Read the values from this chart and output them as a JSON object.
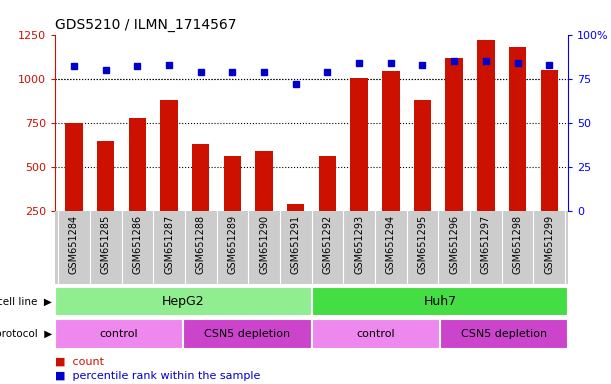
{
  "title": "GDS5210 / ILMN_1714567",
  "samples": [
    "GSM651284",
    "GSM651285",
    "GSM651286",
    "GSM651287",
    "GSM651288",
    "GSM651289",
    "GSM651290",
    "GSM651291",
    "GSM651292",
    "GSM651293",
    "GSM651294",
    "GSM651295",
    "GSM651296",
    "GSM651297",
    "GSM651298",
    "GSM651299"
  ],
  "counts": [
    750,
    650,
    780,
    880,
    630,
    560,
    590,
    290,
    560,
    1005,
    1045,
    880,
    1120,
    1220,
    1180,
    1050
  ],
  "percentiles": [
    82,
    80,
    82,
    83,
    79,
    79,
    79,
    72,
    79,
    84,
    84,
    83,
    85,
    85,
    84,
    83
  ],
  "cell_line_groups": [
    {
      "label": "HepG2",
      "start": 0,
      "end": 7,
      "color": "#90ee90"
    },
    {
      "label": "Huh7",
      "start": 8,
      "end": 15,
      "color": "#44dd44"
    }
  ],
  "protocol_groups": [
    {
      "label": "control",
      "start": 0,
      "end": 3,
      "color": "#ee88ee"
    },
    {
      "label": "CSN5 depletion",
      "start": 4,
      "end": 7,
      "color": "#cc44cc"
    },
    {
      "label": "control",
      "start": 8,
      "end": 11,
      "color": "#ee88ee"
    },
    {
      "label": "CSN5 depletion",
      "start": 12,
      "end": 15,
      "color": "#cc44cc"
    }
  ],
  "bar_color": "#cc1100",
  "dot_color": "#0000cc",
  "ylim_left": [
    250,
    1250
  ],
  "ylim_right": [
    0,
    100
  ],
  "yticks_left": [
    250,
    500,
    750,
    1000,
    1250
  ],
  "yticks_right": [
    0,
    25,
    50,
    75,
    100
  ],
  "grid_lines": [
    500,
    750,
    1000
  ],
  "legend_count_label": "count",
  "legend_pct_label": "percentile rank within the sample",
  "cell_line_label": "cell line",
  "protocol_label": "protocol",
  "xlabel_bg": "#cccccc",
  "bar_width": 0.55
}
